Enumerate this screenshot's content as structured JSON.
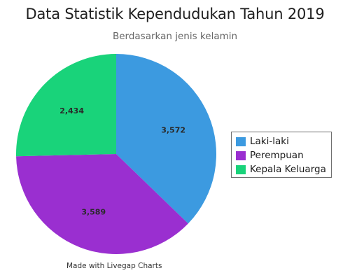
{
  "chart_data": {
    "type": "pie",
    "title": "Data Statistik Kependudukan Tahun 2019",
    "subtitle": "Berdasarkan jenis kelamin",
    "categories": [
      "Laki-laki",
      "Perempuan",
      "Kepala Keluarga"
    ],
    "values": [
      3572,
      3589,
      2434
    ],
    "value_labels": [
      "3,572",
      "3,589",
      "2,434"
    ],
    "colors": [
      "#3c9ae0",
      "#9a2fd0",
      "#19d37a"
    ],
    "legend_position": "right",
    "credit": "Made with Livegap Charts"
  }
}
